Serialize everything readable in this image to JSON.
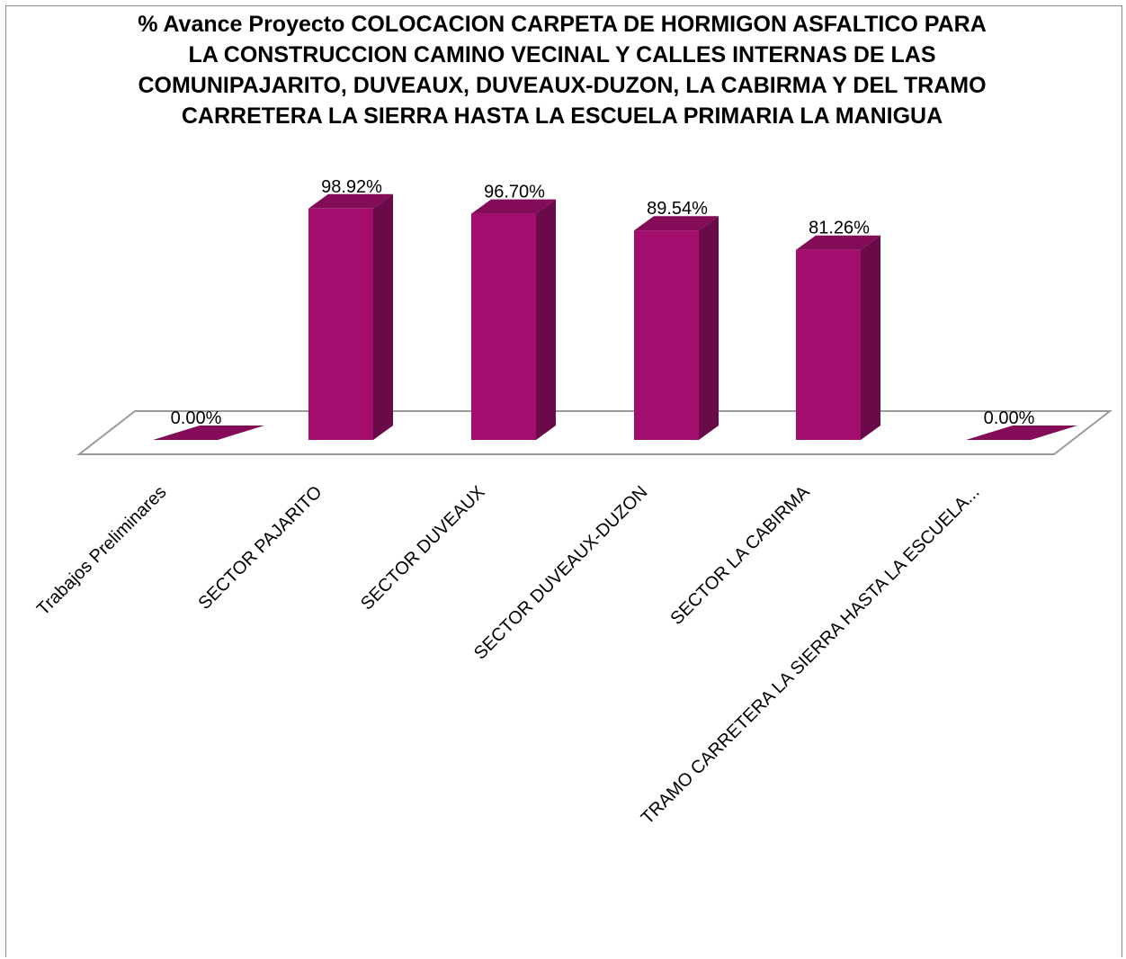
{
  "chart_data": {
    "type": "bar",
    "title": "% Avance Proyecto COLOCACION CARPETA DE HORMIGON ASFALTICO PARA LA CONSTRUCCION CAMINO VECINAL Y CALLES INTERNAS DE LAS COMUNIPAJARITO, DUVEAUX, DUVEAUX-DUZON, LA CABIRMA Y DEL TRAMO CARRETERA LA SIERRA HASTA LA ESCUELA PRIMARIA LA MANIGUA",
    "categories": [
      "Trabajos Preliminares",
      "SECTOR PAJARITO",
      "SECTOR DUVEAUX",
      "SECTOR DUVEAUX-DUZON",
      "SECTOR LA CABIRMA",
      "TRAMO CARRETERA LA SIERRA HASTA LA ESCUELA..."
    ],
    "values": [
      0.0,
      98.92,
      96.7,
      89.54,
      81.26,
      0.0
    ],
    "data_labels": [
      "0.00%",
      "98.92%",
      "96.70%",
      "89.54%",
      "81.26%",
      "0.00%"
    ],
    "value_unit": "%",
    "style": "3d-column",
    "grid": false,
    "legend": "none",
    "colors": {
      "bar_front": "#a30d6e",
      "bar_side": "#6b0a48",
      "bar_top": "#830b58",
      "floor_stroke": "#9a9a9a"
    }
  }
}
